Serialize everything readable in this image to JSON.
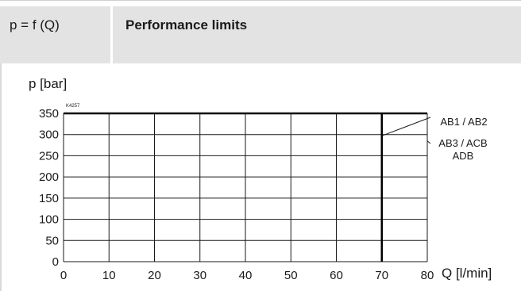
{
  "header": {
    "formula": "p = f (Q)",
    "title": "Performance limits"
  },
  "chart_data": {
    "type": "line",
    "ylabel": "p [bar]",
    "xlabel": "Q [l/min]",
    "figure_code": "K4257",
    "xlim": [
      0,
      80
    ],
    "ylim": [
      0,
      350
    ],
    "x_ticks": [
      0,
      10,
      20,
      30,
      40,
      50,
      60,
      70,
      80
    ],
    "y_ticks": [
      0,
      50,
      100,
      150,
      200,
      250,
      300,
      350
    ],
    "grid": true,
    "series": [
      {
        "name": "AB1 / AB2",
        "x": [
          0,
          80
        ],
        "y": [
          350,
          350
        ]
      },
      {
        "name": "AB3 / ACB ADB",
        "x": [
          70,
          70
        ],
        "y": [
          0,
          350
        ]
      }
    ],
    "annotations": [
      {
        "lines": [
          "AB1 / AB2"
        ],
        "target": {
          "x": 70,
          "y": 297
        }
      },
      {
        "lines": [
          "AB3 / ACB",
          "ADB"
        ],
        "target": {
          "x": 80,
          "y": 285
        }
      }
    ]
  }
}
